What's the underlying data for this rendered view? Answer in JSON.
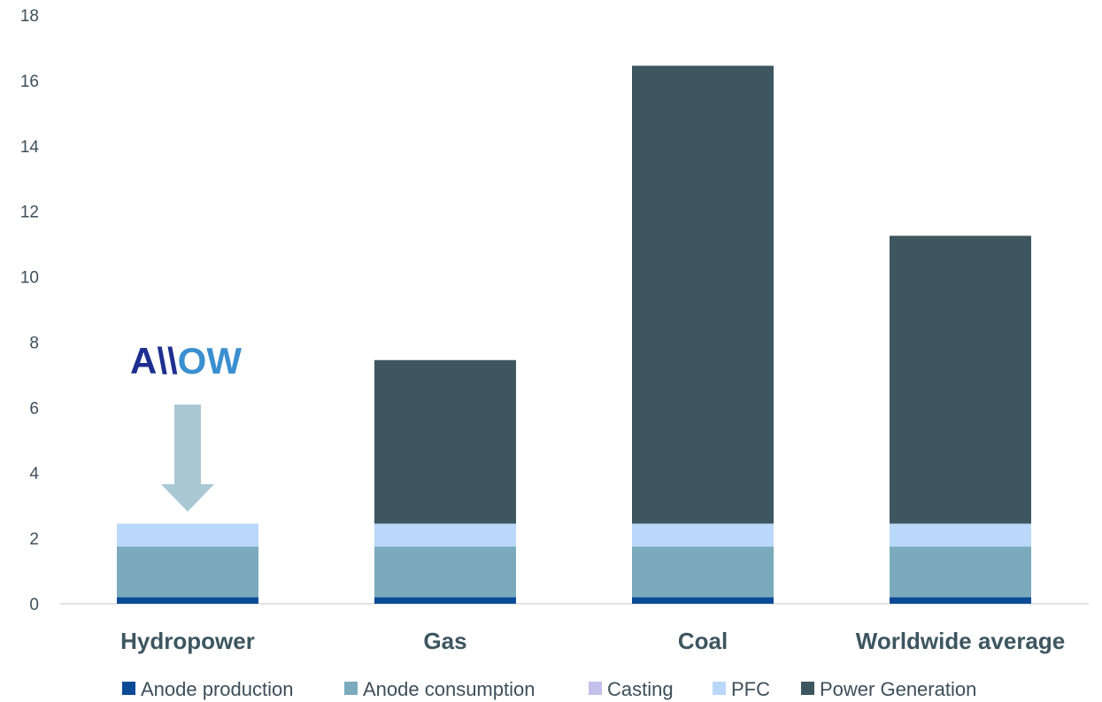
{
  "chart_data": {
    "type": "bar",
    "stacked": true,
    "categories": [
      "Hydropower",
      "Gas",
      "Coal",
      "Worldwide average"
    ],
    "series": [
      {
        "name": "Anode production",
        "color": "#0b4a96",
        "values": [
          0.2,
          0.2,
          0.2,
          0.2
        ]
      },
      {
        "name": "Anode consumption",
        "color": "#7aaabb",
        "values": [
          1.55,
          1.55,
          1.55,
          1.55
        ]
      },
      {
        "name": "Casting",
        "color": "#c3c0ec",
        "values": [
          0.0,
          0.0,
          0.0,
          0.0
        ]
      },
      {
        "name": "PFC",
        "color": "#b9d8fa",
        "values": [
          0.7,
          0.7,
          0.7,
          0.7
        ]
      },
      {
        "name": "Power Generation",
        "color": "#3d5660",
        "values": [
          0.0,
          5.0,
          14.0,
          8.8
        ]
      }
    ],
    "ylim": [
      0,
      18
    ],
    "yticks": [
      0,
      2,
      4,
      6,
      8,
      10,
      12,
      14,
      16,
      18
    ],
    "grid": false,
    "legend_position": "bottom",
    "annotation": {
      "logo_text": "A\\\\OW",
      "logo_color_dark": "#1e2f8f",
      "logo_color_light": "#3a8fd0",
      "arrow_color": "#a9c8d4",
      "target_category": "Hydropower"
    }
  }
}
